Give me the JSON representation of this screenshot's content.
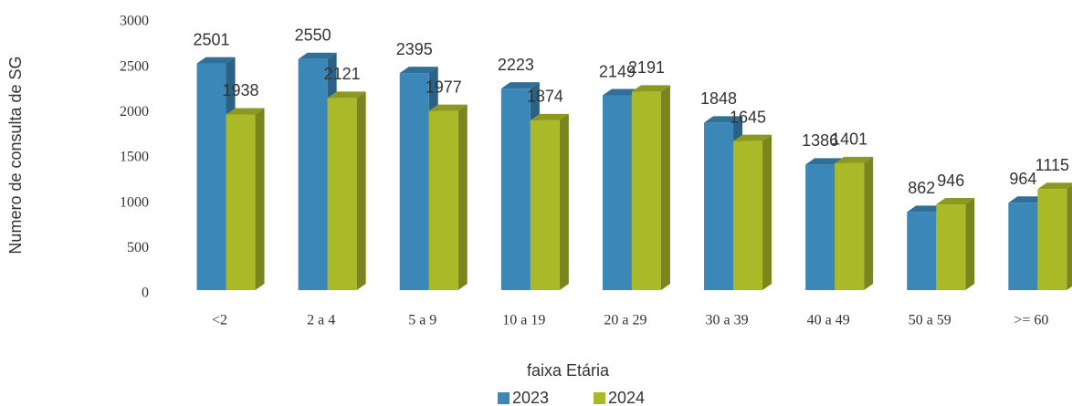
{
  "chart_data": {
    "type": "bar",
    "x_label": "faixa Etária",
    "y_label": "Numero de consulta de SG",
    "categories": [
      "<2",
      "2 a 4",
      "5 a 9",
      "10 a 19",
      "20 a 29",
      "30 a 39",
      "40 a 49",
      "50 a 59",
      ">= 60"
    ],
    "series": [
      {
        "name": "2023",
        "color": "#3a87b8",
        "values": [
          2501,
          2550,
          2395,
          2223,
          2149,
          1848,
          1386,
          862,
          964
        ]
      },
      {
        "name": "2024",
        "color": "#a9b928",
        "values": [
          1938,
          2121,
          1977,
          1874,
          2191,
          1645,
          1401,
          946,
          1115
        ]
      }
    ],
    "ylim": [
      0,
      3000
    ],
    "yticks": [
      0,
      500,
      1000,
      1500,
      2000,
      2500,
      3000
    ],
    "grid": false,
    "legend": "bottom"
  }
}
